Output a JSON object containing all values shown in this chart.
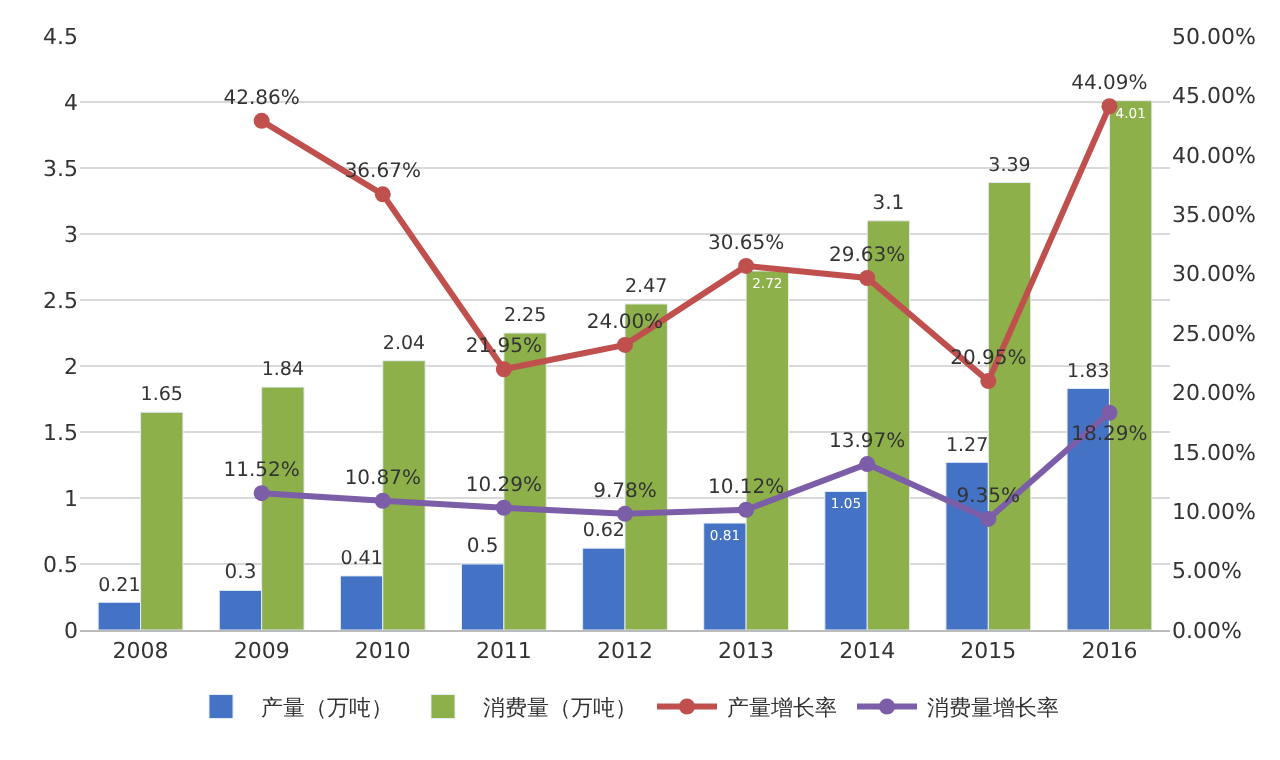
{
  "chart_data": {
    "type": "bar",
    "categories": [
      "2008",
      "2009",
      "2010",
      "2011",
      "2012",
      "2013",
      "2014",
      "2015",
      "2016"
    ],
    "series": [
      {
        "name": "产量（万吨）",
        "color": "#4472c4",
        "values": [
          0.21,
          0.3,
          0.41,
          0.5,
          0.62,
          0.81,
          1.05,
          1.27,
          1.83
        ],
        "value_labels": [
          "0.21",
          "0.3",
          "0.41",
          "0.5",
          "0.62",
          "0.81",
          "1.05",
          "1.27",
          "1.83"
        ]
      },
      {
        "name": "消费量（万吨）",
        "color": "#8db04a",
        "values": [
          1.65,
          1.84,
          2.04,
          2.25,
          2.47,
          2.72,
          3.1,
          3.39,
          4.01
        ],
        "value_labels": [
          "1.65",
          "1.84",
          "2.04",
          "2.25",
          "2.47",
          "2.72",
          "3.1",
          "3.39",
          "4.01"
        ]
      },
      {
        "name": "产量增长率",
        "type": "line",
        "axis": "y2",
        "color": "#c0504d",
        "values": [
          null,
          42.86,
          36.67,
          21.95,
          24.0,
          30.65,
          29.63,
          20.95,
          44.09
        ],
        "value_labels": [
          null,
          "42.86%",
          "36.67%",
          "21.95%",
          "24.00%",
          "30.65%",
          "29.63%",
          "20.95%",
          "44.09%"
        ]
      },
      {
        "name": "消费量增长率",
        "type": "line",
        "axis": "y2",
        "color": "#7b5ea7",
        "values": [
          null,
          11.52,
          10.87,
          10.29,
          9.78,
          10.12,
          13.97,
          9.35,
          18.29
        ],
        "value_labels": [
          null,
          "11.52%",
          "10.87%",
          "10.29%",
          "9.78%",
          "10.12%",
          "13.97%",
          "9.35%",
          "18.29%"
        ]
      }
    ],
    "ylim": [
      0,
      4.5
    ],
    "yticks": [
      0,
      0.5,
      1,
      1.5,
      2,
      2.5,
      3,
      3.5,
      4,
      4.5
    ],
    "y2lim": [
      0,
      50
    ],
    "y2ticks": [
      {
        "value": 0,
        "label": "0.00%"
      },
      {
        "value": 5,
        "label": "5.00%"
      },
      {
        "value": 10,
        "label": "10.00%"
      },
      {
        "value": 15,
        "label": "15.00%"
      },
      {
        "value": 20,
        "label": "20.00%"
      },
      {
        "value": 25,
        "label": "25.00%"
      },
      {
        "value": 30,
        "label": "30.00%"
      },
      {
        "value": 35,
        "label": "35.00%"
      },
      {
        "value": 40,
        "label": "40.00%"
      },
      {
        "value": 45,
        "label": "45.00%"
      },
      {
        "value": 50,
        "label": "50.00%"
      }
    ],
    "grid": "y",
    "legend": "bottom",
    "marker": "circle",
    "line_style": "solid"
  }
}
